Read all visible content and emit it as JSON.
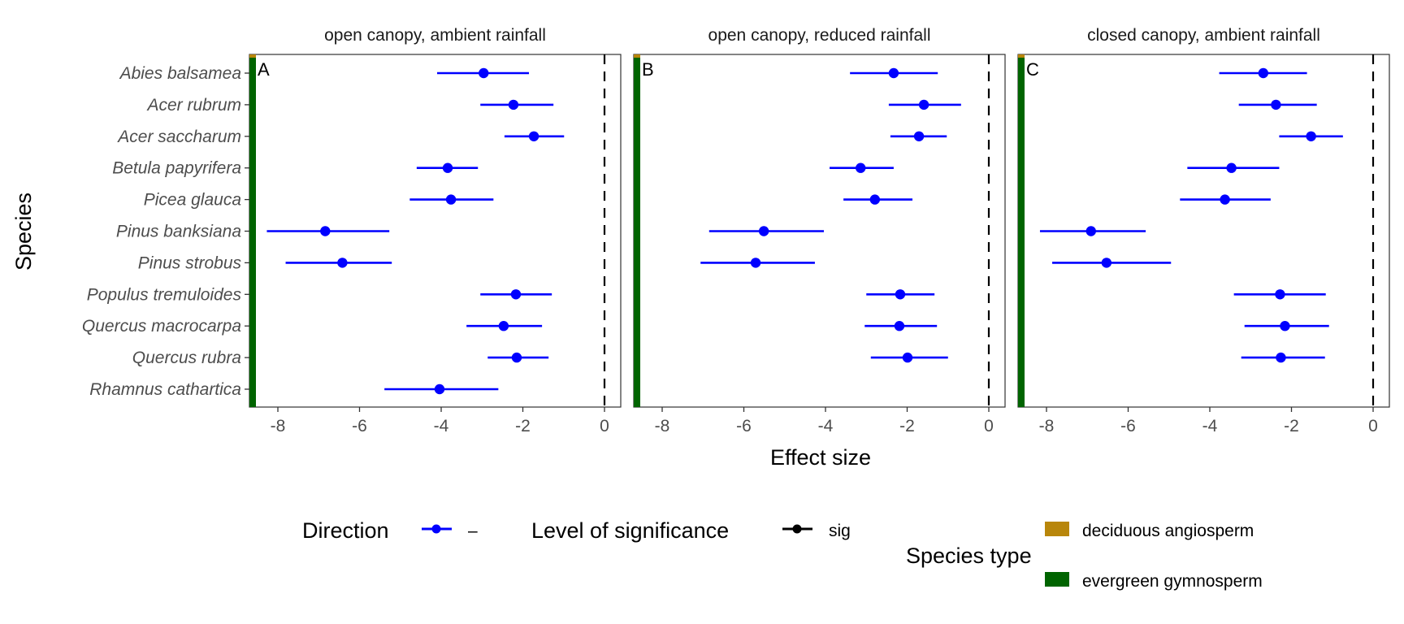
{
  "chart_data": {
    "type": "forest",
    "xlabel": "Effect size",
    "ylabel": "Species",
    "xlim": [
      -8.7,
      0.4
    ],
    "xticks": [
      -8,
      -6,
      -4,
      -2,
      0
    ],
    "xtick_labels": [
      "-8",
      "-6",
      "-4",
      "-2",
      "0"
    ],
    "reference_line": {
      "x": 0,
      "style": "dashed",
      "color": "#000000"
    },
    "grid": false,
    "categories": [
      "Abies balsamea",
      "Acer rubrum",
      "Acer saccharum",
      "Betula papyrifera",
      "Picea glauca",
      "Pinus banksiana",
      "Pinus strobus",
      "Populus tremuloides",
      "Quercus macrocarpa",
      "Quercus rubra",
      "Rhamnus cathartica"
    ],
    "panels": [
      {
        "title": "open canopy, ambient rainfall",
        "tag": "A",
        "series": [
          {
            "species": "Abies balsamea",
            "estimate": -2.96,
            "lower": -4.1,
            "upper": -1.85
          },
          {
            "species": "Acer rubrum",
            "estimate": -2.23,
            "lower": -3.04,
            "upper": -1.25
          },
          {
            "species": "Acer saccharum",
            "estimate": -1.73,
            "lower": -2.45,
            "upper": -0.99
          },
          {
            "species": "Betula papyrifera",
            "estimate": -3.84,
            "lower": -4.6,
            "upper": -3.1
          },
          {
            "species": "Picea glauca",
            "estimate": -3.76,
            "lower": -4.77,
            "upper": -2.72
          },
          {
            "species": "Pinus banksiana",
            "estimate": -6.84,
            "lower": -8.27,
            "upper": -5.27
          },
          {
            "species": "Pinus strobus",
            "estimate": -6.42,
            "lower": -7.81,
            "upper": -5.21
          },
          {
            "species": "Populus tremuloides",
            "estimate": -2.17,
            "lower": -3.04,
            "upper": -1.29
          },
          {
            "species": "Quercus macrocarpa",
            "estimate": -2.47,
            "lower": -3.38,
            "upper": -1.53
          },
          {
            "species": "Quercus rubra",
            "estimate": -2.15,
            "lower": -2.86,
            "upper": -1.37
          },
          {
            "species": "Rhamnus cathartica",
            "estimate": -4.04,
            "lower": -5.39,
            "upper": -2.6
          }
        ]
      },
      {
        "title": "open canopy, reduced rainfall",
        "tag": "B",
        "series": [
          {
            "species": "Abies balsamea",
            "estimate": -2.33,
            "lower": -3.4,
            "upper": -1.25
          },
          {
            "species": "Acer rubrum",
            "estimate": -1.59,
            "lower": -2.45,
            "upper": -0.68
          },
          {
            "species": "Acer saccharum",
            "estimate": -1.71,
            "lower": -2.41,
            "upper": -1.03
          },
          {
            "species": "Betula papyrifera",
            "estimate": -3.14,
            "lower": -3.9,
            "upper": -2.33
          },
          {
            "species": "Picea glauca",
            "estimate": -2.79,
            "lower": -3.56,
            "upper": -1.87
          },
          {
            "species": "Pinus banksiana",
            "estimate": -5.51,
            "lower": -6.85,
            "upper": -4.04
          },
          {
            "species": "Pinus strobus",
            "estimate": -5.71,
            "lower": -7.06,
            "upper": -4.26
          },
          {
            "species": "Populus tremuloides",
            "estimate": -2.17,
            "lower": -3.0,
            "upper": -1.33
          },
          {
            "species": "Quercus macrocarpa",
            "estimate": -2.19,
            "lower": -3.04,
            "upper": -1.27
          },
          {
            "species": "Quercus rubra",
            "estimate": -1.99,
            "lower": -2.89,
            "upper": -1.0
          }
        ]
      },
      {
        "title": "closed canopy, ambient rainfall",
        "tag": "C",
        "series": [
          {
            "species": "Abies balsamea",
            "estimate": -2.69,
            "lower": -3.77,
            "upper": -1.62
          },
          {
            "species": "Acer rubrum",
            "estimate": -2.38,
            "lower": -3.29,
            "upper": -1.38
          },
          {
            "species": "Acer saccharum",
            "estimate": -1.52,
            "lower": -2.3,
            "upper": -0.74
          },
          {
            "species": "Betula papyrifera",
            "estimate": -3.47,
            "lower": -4.55,
            "upper": -2.3
          },
          {
            "species": "Picea glauca",
            "estimate": -3.63,
            "lower": -4.73,
            "upper": -2.51
          },
          {
            "species": "Pinus banksiana",
            "estimate": -6.91,
            "lower": -8.16,
            "upper": -5.57
          },
          {
            "species": "Pinus strobus",
            "estimate": -6.53,
            "lower": -7.86,
            "upper": -4.95
          },
          {
            "species": "Populus tremuloides",
            "estimate": -2.28,
            "lower": -3.41,
            "upper": -1.16
          },
          {
            "species": "Quercus macrocarpa",
            "estimate": -2.16,
            "lower": -3.15,
            "upper": -1.08
          },
          {
            "species": "Quercus rubra",
            "estimate": -2.26,
            "lower": -3.23,
            "upper": -1.18
          }
        ]
      }
    ],
    "point_color": "#0000ff",
    "legend": {
      "placement": "bottom",
      "direction": {
        "title": "Direction",
        "items": [
          {
            "label": "–",
            "color": "#0000ff"
          }
        ]
      },
      "significance": {
        "title": "Level of significance",
        "items": [
          {
            "label": "sig",
            "color": "#000000"
          }
        ]
      },
      "species_type": {
        "title": "Species type",
        "items": [
          {
            "label": "deciduous angiosperm",
            "color": "#b8860b"
          },
          {
            "label": "evergreen gymnosperm",
            "color": "#006400"
          }
        ]
      }
    }
  }
}
